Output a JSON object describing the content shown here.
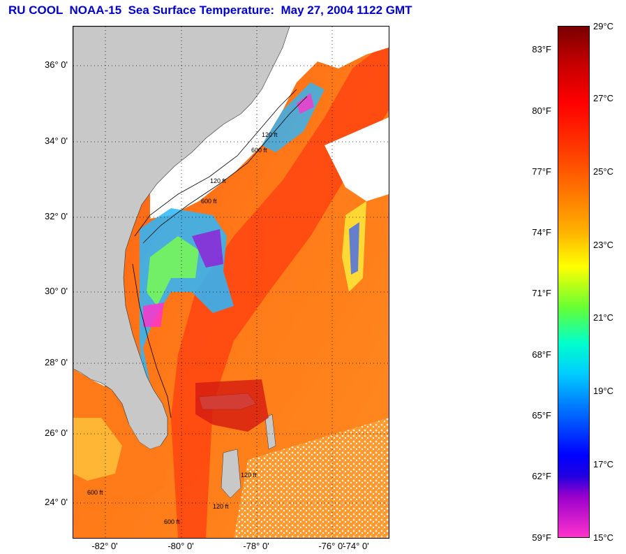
{
  "title": "RU COOL  NOAA-15  Sea Surface Temperature:  May 27, 2004 1122 GMT",
  "map": {
    "lat_labels": [
      "36° 0'",
      "34° 0'",
      "32° 0'",
      "30° 0'",
      "28° 0'",
      "26° 0'",
      "24° 0'"
    ],
    "lon_labels": [
      "-82° 0'",
      "-80° 0'",
      "-78° 0'",
      "-76° 0'",
      "-74° 0'"
    ],
    "isobath_labels": [
      "120 ft",
      "600 ft",
      "120 ft",
      "600 ft",
      "120 ft",
      "600 ft",
      "120 ft",
      "600 ft"
    ],
    "colors": {
      "land": "#c8c8c8",
      "cloud": "#ffffff",
      "warm": "#ff6a10",
      "grid": "#000000"
    }
  },
  "colorbar": {
    "fahrenheit_labels": [
      "83°F",
      "80°F",
      "77°F",
      "74°F",
      "71°F",
      "68°F",
      "65°F",
      "62°F",
      "59°F"
    ],
    "celsius_labels": [
      "29°C",
      "27°C",
      "25°C",
      "23°C",
      "21°C",
      "19°C",
      "17°C",
      "15°C"
    ],
    "colors": [
      "#7a0000",
      "#ff0000",
      "#ff7a00",
      "#ffff00",
      "#66ff33",
      "#00ffff",
      "#0066ff",
      "#0000ff",
      "#9900cc",
      "#ff33cc"
    ]
  }
}
